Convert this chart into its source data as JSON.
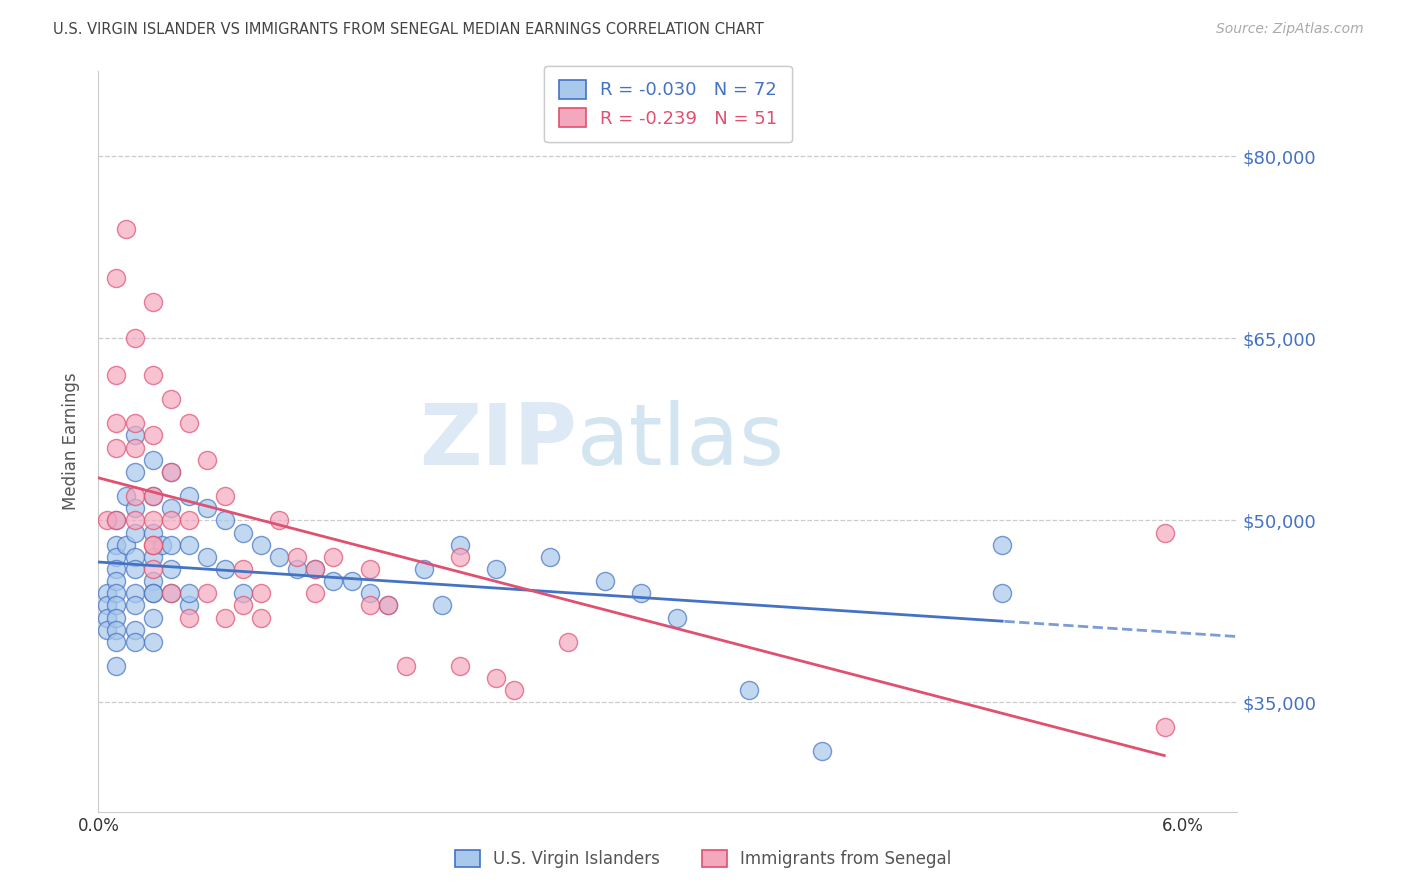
{
  "title": "U.S. VIRGIN ISLANDER VS IMMIGRANTS FROM SENEGAL MEDIAN EARNINGS CORRELATION CHART",
  "source": "Source: ZipAtlas.com",
  "ylabel": "Median Earnings",
  "legend_label1": "U.S. Virgin Islanders",
  "legend_label2": "Immigrants from Senegal",
  "r1": -0.03,
  "n1": 72,
  "r2": -0.239,
  "n2": 51,
  "color1": "#A8C8EC",
  "color2": "#F4A8BE",
  "trendline1_color": "#4472C4",
  "trendline2_color": "#E05070",
  "axis_label_color": "#4472C4",
  "xlim_min": 0.0,
  "xlim_max": 0.063,
  "ylim_min": 26000,
  "ylim_max": 87000,
  "yticks": [
    35000,
    50000,
    65000,
    80000
  ],
  "ytick_labels": [
    "$35,000",
    "$50,000",
    "$65,000",
    "$80,000"
  ],
  "watermark_zip": "ZIP",
  "watermark_atlas": "atlas",
  "blue_x": [
    0.0005,
    0.0005,
    0.0005,
    0.0005,
    0.001,
    0.001,
    0.001,
    0.001,
    0.001,
    0.001,
    0.001,
    0.001,
    0.001,
    0.001,
    0.001,
    0.0015,
    0.0015,
    0.002,
    0.002,
    0.002,
    0.002,
    0.002,
    0.002,
    0.002,
    0.002,
    0.002,
    0.002,
    0.003,
    0.003,
    0.003,
    0.003,
    0.003,
    0.003,
    0.003,
    0.003,
    0.0035,
    0.004,
    0.004,
    0.004,
    0.004,
    0.004,
    0.005,
    0.005,
    0.005,
    0.006,
    0.006,
    0.007,
    0.007,
    0.008,
    0.008,
    0.009,
    0.01,
    0.011,
    0.012,
    0.013,
    0.014,
    0.015,
    0.016,
    0.018,
    0.019,
    0.02,
    0.022,
    0.025,
    0.028,
    0.03,
    0.032,
    0.036,
    0.04,
    0.05,
    0.05,
    0.003,
    0.005
  ],
  "blue_y": [
    44000,
    43000,
    42000,
    41000,
    50000,
    48000,
    47000,
    46000,
    45000,
    44000,
    43000,
    42000,
    41000,
    40000,
    38000,
    52000,
    48000,
    57000,
    54000,
    51000,
    49000,
    47000,
    46000,
    44000,
    43000,
    41000,
    40000,
    55000,
    52000,
    49000,
    47000,
    45000,
    44000,
    42000,
    40000,
    48000,
    54000,
    51000,
    48000,
    46000,
    44000,
    52000,
    48000,
    43000,
    51000,
    47000,
    50000,
    46000,
    49000,
    44000,
    48000,
    47000,
    46000,
    46000,
    45000,
    45000,
    44000,
    43000,
    46000,
    43000,
    48000,
    46000,
    47000,
    45000,
    44000,
    42000,
    36000,
    31000,
    48000,
    44000,
    44000,
    44000
  ],
  "pink_x": [
    0.0005,
    0.001,
    0.001,
    0.001,
    0.001,
    0.001,
    0.0015,
    0.002,
    0.002,
    0.002,
    0.002,
    0.002,
    0.003,
    0.003,
    0.003,
    0.003,
    0.003,
    0.003,
    0.004,
    0.004,
    0.004,
    0.005,
    0.005,
    0.006,
    0.007,
    0.008,
    0.009,
    0.01,
    0.011,
    0.012,
    0.013,
    0.015,
    0.016,
    0.017,
    0.02,
    0.022,
    0.023,
    0.026,
    0.003,
    0.004,
    0.005,
    0.006,
    0.007,
    0.008,
    0.009,
    0.012,
    0.015,
    0.02,
    0.059,
    0.059,
    0.003
  ],
  "pink_y": [
    50000,
    70000,
    62000,
    58000,
    56000,
    50000,
    74000,
    65000,
    58000,
    56000,
    52000,
    50000,
    68000,
    62000,
    57000,
    52000,
    50000,
    48000,
    60000,
    54000,
    50000,
    58000,
    50000,
    55000,
    52000,
    46000,
    44000,
    50000,
    47000,
    46000,
    47000,
    46000,
    43000,
    38000,
    38000,
    37000,
    36000,
    40000,
    46000,
    44000,
    42000,
    44000,
    42000,
    43000,
    42000,
    44000,
    43000,
    47000,
    49000,
    33000,
    48000
  ]
}
